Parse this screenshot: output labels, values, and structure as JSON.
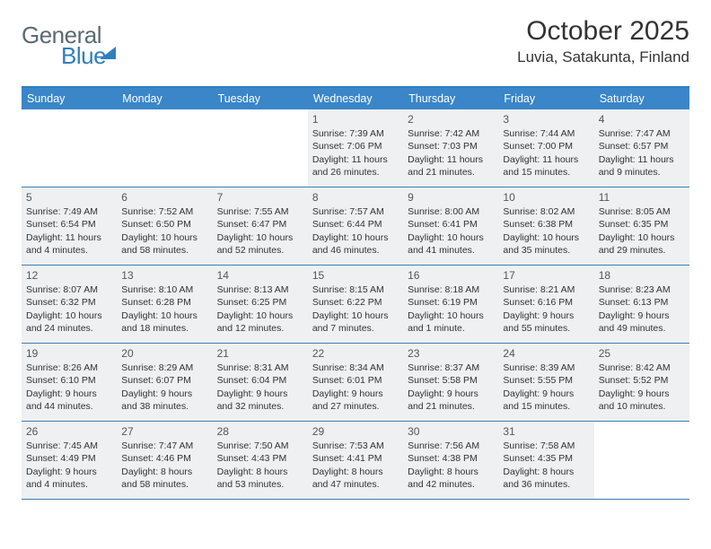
{
  "logo": {
    "word1": "General",
    "word2": "Blue"
  },
  "title": "October 2025",
  "location": "Luvia, Satakunta, Finland",
  "dayNames": [
    "Sunday",
    "Monday",
    "Tuesday",
    "Wednesday",
    "Thursday",
    "Friday",
    "Saturday"
  ],
  "colors": {
    "header_bg": "#3a86c8",
    "header_text": "#ffffff",
    "border": "#3a7fb5",
    "shaded_bg": "#eef0f1",
    "text": "#333333",
    "logo_gray": "#5a6a72",
    "logo_blue": "#2f7fbf"
  },
  "weeks": [
    [
      {
        "day": "",
        "lines": []
      },
      {
        "day": "",
        "lines": []
      },
      {
        "day": "",
        "lines": []
      },
      {
        "day": "1",
        "lines": [
          "Sunrise: 7:39 AM",
          "Sunset: 7:06 PM",
          "Daylight: 11 hours",
          "and 26 minutes."
        ],
        "shaded": true
      },
      {
        "day": "2",
        "lines": [
          "Sunrise: 7:42 AM",
          "Sunset: 7:03 PM",
          "Daylight: 11 hours",
          "and 21 minutes."
        ],
        "shaded": true
      },
      {
        "day": "3",
        "lines": [
          "Sunrise: 7:44 AM",
          "Sunset: 7:00 PM",
          "Daylight: 11 hours",
          "and 15 minutes."
        ],
        "shaded": true
      },
      {
        "day": "4",
        "lines": [
          "Sunrise: 7:47 AM",
          "Sunset: 6:57 PM",
          "Daylight: 11 hours",
          "and 9 minutes."
        ],
        "shaded": true
      }
    ],
    [
      {
        "day": "5",
        "lines": [
          "Sunrise: 7:49 AM",
          "Sunset: 6:54 PM",
          "Daylight: 11 hours",
          "and 4 minutes."
        ],
        "shaded": true
      },
      {
        "day": "6",
        "lines": [
          "Sunrise: 7:52 AM",
          "Sunset: 6:50 PM",
          "Daylight: 10 hours",
          "and 58 minutes."
        ],
        "shaded": true
      },
      {
        "day": "7",
        "lines": [
          "Sunrise: 7:55 AM",
          "Sunset: 6:47 PM",
          "Daylight: 10 hours",
          "and 52 minutes."
        ],
        "shaded": true
      },
      {
        "day": "8",
        "lines": [
          "Sunrise: 7:57 AM",
          "Sunset: 6:44 PM",
          "Daylight: 10 hours",
          "and 46 minutes."
        ],
        "shaded": true
      },
      {
        "day": "9",
        "lines": [
          "Sunrise: 8:00 AM",
          "Sunset: 6:41 PM",
          "Daylight: 10 hours",
          "and 41 minutes."
        ],
        "shaded": true
      },
      {
        "day": "10",
        "lines": [
          "Sunrise: 8:02 AM",
          "Sunset: 6:38 PM",
          "Daylight: 10 hours",
          "and 35 minutes."
        ],
        "shaded": true
      },
      {
        "day": "11",
        "lines": [
          "Sunrise: 8:05 AM",
          "Sunset: 6:35 PM",
          "Daylight: 10 hours",
          "and 29 minutes."
        ],
        "shaded": true
      }
    ],
    [
      {
        "day": "12",
        "lines": [
          "Sunrise: 8:07 AM",
          "Sunset: 6:32 PM",
          "Daylight: 10 hours",
          "and 24 minutes."
        ],
        "shaded": true
      },
      {
        "day": "13",
        "lines": [
          "Sunrise: 8:10 AM",
          "Sunset: 6:28 PM",
          "Daylight: 10 hours",
          "and 18 minutes."
        ],
        "shaded": true
      },
      {
        "day": "14",
        "lines": [
          "Sunrise: 8:13 AM",
          "Sunset: 6:25 PM",
          "Daylight: 10 hours",
          "and 12 minutes."
        ],
        "shaded": true
      },
      {
        "day": "15",
        "lines": [
          "Sunrise: 8:15 AM",
          "Sunset: 6:22 PM",
          "Daylight: 10 hours",
          "and 7 minutes."
        ],
        "shaded": true
      },
      {
        "day": "16",
        "lines": [
          "Sunrise: 8:18 AM",
          "Sunset: 6:19 PM",
          "Daylight: 10 hours",
          "and 1 minute."
        ],
        "shaded": true
      },
      {
        "day": "17",
        "lines": [
          "Sunrise: 8:21 AM",
          "Sunset: 6:16 PM",
          "Daylight: 9 hours",
          "and 55 minutes."
        ],
        "shaded": true
      },
      {
        "day": "18",
        "lines": [
          "Sunrise: 8:23 AM",
          "Sunset: 6:13 PM",
          "Daylight: 9 hours",
          "and 49 minutes."
        ],
        "shaded": true
      }
    ],
    [
      {
        "day": "19",
        "lines": [
          "Sunrise: 8:26 AM",
          "Sunset: 6:10 PM",
          "Daylight: 9 hours",
          "and 44 minutes."
        ],
        "shaded": true
      },
      {
        "day": "20",
        "lines": [
          "Sunrise: 8:29 AM",
          "Sunset: 6:07 PM",
          "Daylight: 9 hours",
          "and 38 minutes."
        ],
        "shaded": true
      },
      {
        "day": "21",
        "lines": [
          "Sunrise: 8:31 AM",
          "Sunset: 6:04 PM",
          "Daylight: 9 hours",
          "and 32 minutes."
        ],
        "shaded": true
      },
      {
        "day": "22",
        "lines": [
          "Sunrise: 8:34 AM",
          "Sunset: 6:01 PM",
          "Daylight: 9 hours",
          "and 27 minutes."
        ],
        "shaded": true
      },
      {
        "day": "23",
        "lines": [
          "Sunrise: 8:37 AM",
          "Sunset: 5:58 PM",
          "Daylight: 9 hours",
          "and 21 minutes."
        ],
        "shaded": true
      },
      {
        "day": "24",
        "lines": [
          "Sunrise: 8:39 AM",
          "Sunset: 5:55 PM",
          "Daylight: 9 hours",
          "and 15 minutes."
        ],
        "shaded": true
      },
      {
        "day": "25",
        "lines": [
          "Sunrise: 8:42 AM",
          "Sunset: 5:52 PM",
          "Daylight: 9 hours",
          "and 10 minutes."
        ],
        "shaded": true
      }
    ],
    [
      {
        "day": "26",
        "lines": [
          "Sunrise: 7:45 AM",
          "Sunset: 4:49 PM",
          "Daylight: 9 hours",
          "and 4 minutes."
        ],
        "shaded": true
      },
      {
        "day": "27",
        "lines": [
          "Sunrise: 7:47 AM",
          "Sunset: 4:46 PM",
          "Daylight: 8 hours",
          "and 58 minutes."
        ],
        "shaded": true
      },
      {
        "day": "28",
        "lines": [
          "Sunrise: 7:50 AM",
          "Sunset: 4:43 PM",
          "Daylight: 8 hours",
          "and 53 minutes."
        ],
        "shaded": true
      },
      {
        "day": "29",
        "lines": [
          "Sunrise: 7:53 AM",
          "Sunset: 4:41 PM",
          "Daylight: 8 hours",
          "and 47 minutes."
        ],
        "shaded": true
      },
      {
        "day": "30",
        "lines": [
          "Sunrise: 7:56 AM",
          "Sunset: 4:38 PM",
          "Daylight: 8 hours",
          "and 42 minutes."
        ],
        "shaded": true
      },
      {
        "day": "31",
        "lines": [
          "Sunrise: 7:58 AM",
          "Sunset: 4:35 PM",
          "Daylight: 8 hours",
          "and 36 minutes."
        ],
        "shaded": true
      },
      {
        "day": "",
        "lines": []
      }
    ]
  ]
}
